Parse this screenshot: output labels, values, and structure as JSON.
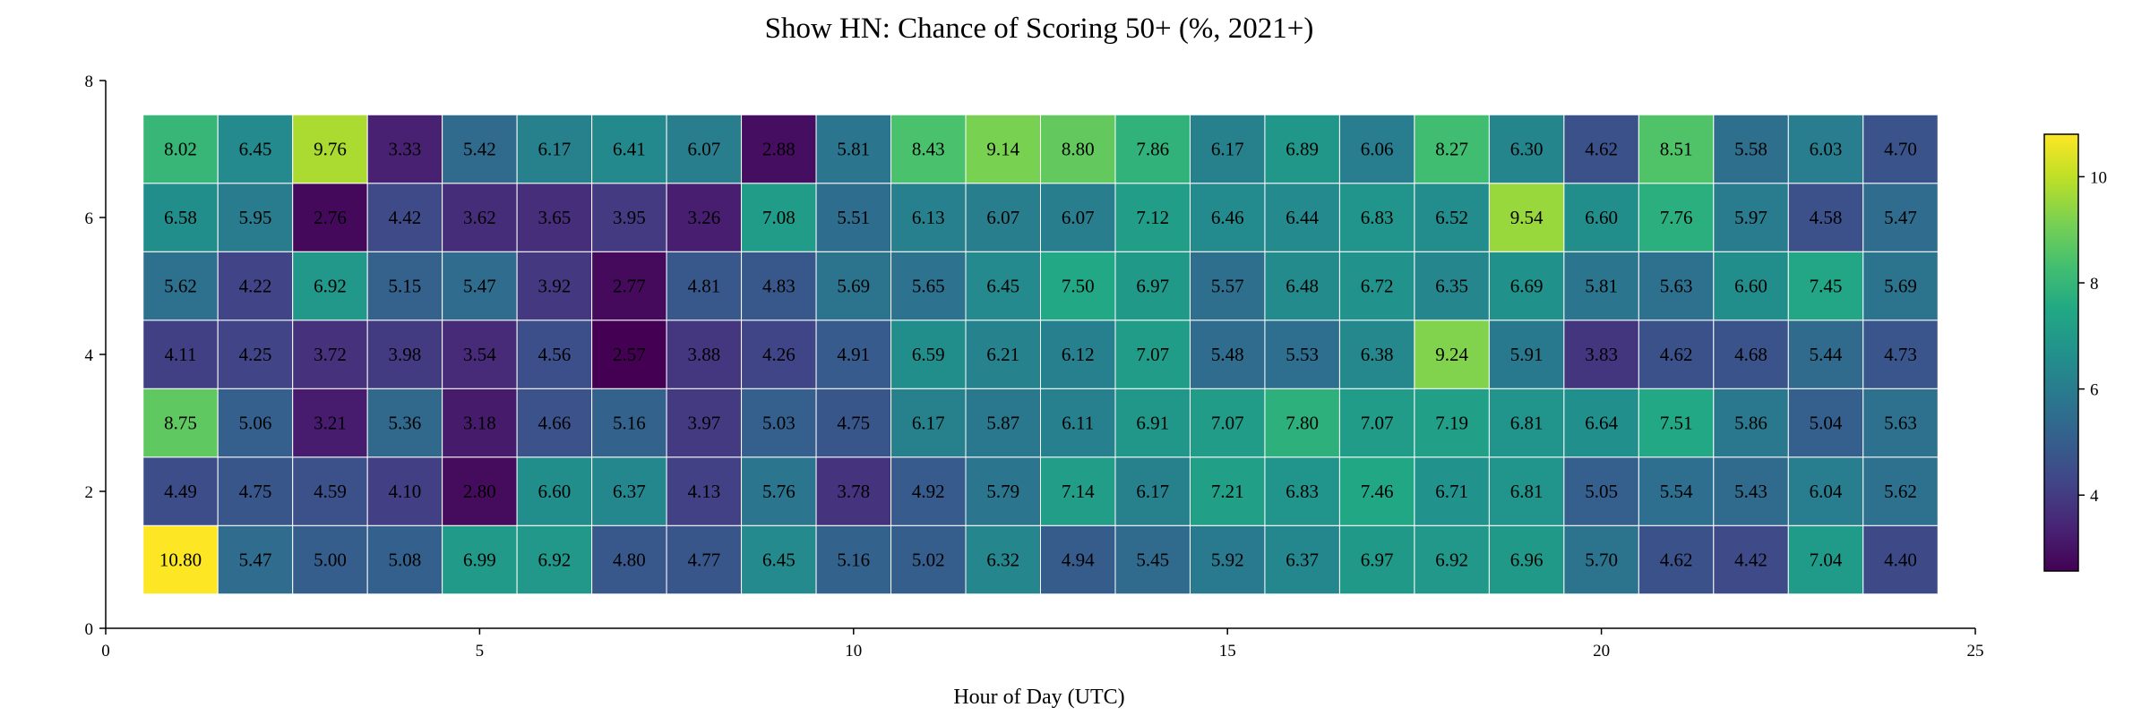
{
  "chart_data": {
    "type": "heatmap",
    "title": "Show HN: Chance of Scoring 50+ (%, 2021+)",
    "xlabel": "Hour of Day (UTC)",
    "ylabel": "",
    "xlim": [
      0,
      25
    ],
    "ylim": [
      0,
      8
    ],
    "x_ticks": [
      0,
      5,
      10,
      15,
      20,
      25
    ],
    "y_ticks": [
      0,
      2,
      4,
      6,
      8
    ],
    "colorbar": {
      "colormap": "viridis",
      "min": 2.57,
      "max": 10.8,
      "ticks": [
        4,
        6,
        8,
        10
      ]
    },
    "x": [
      1,
      2,
      3,
      4,
      5,
      6,
      7,
      8,
      9,
      10,
      11,
      12,
      13,
      14,
      15,
      16,
      17,
      18,
      19,
      20,
      21,
      22,
      23,
      24
    ],
    "y": [
      1,
      2,
      3,
      4,
      5,
      6,
      7
    ],
    "values": [
      [
        10.8,
        5.47,
        5.0,
        5.08,
        6.99,
        6.92,
        4.8,
        4.77,
        6.45,
        5.16,
        5.02,
        6.32,
        4.94,
        5.45,
        5.92,
        6.37,
        6.97,
        6.92,
        6.96,
        5.7,
        4.62,
        4.42,
        7.04,
        4.4
      ],
      [
        4.49,
        4.75,
        4.59,
        4.1,
        2.8,
        6.6,
        6.37,
        4.13,
        5.76,
        3.78,
        4.92,
        5.79,
        7.14,
        6.17,
        7.21,
        6.83,
        7.46,
        6.71,
        6.81,
        5.05,
        5.54,
        5.43,
        6.04,
        5.62
      ],
      [
        8.75,
        5.06,
        3.21,
        5.36,
        3.18,
        4.66,
        5.16,
        3.97,
        5.03,
        4.75,
        6.17,
        5.87,
        6.11,
        6.91,
        7.07,
        7.8,
        7.07,
        7.19,
        6.81,
        6.64,
        7.51,
        5.86,
        5.04,
        5.63
      ],
      [
        4.11,
        4.25,
        3.72,
        3.98,
        3.54,
        4.56,
        2.57,
        3.88,
        4.26,
        4.91,
        6.59,
        6.21,
        6.12,
        7.07,
        5.48,
        5.53,
        6.38,
        9.24,
        5.91,
        3.83,
        4.62,
        4.68,
        5.44,
        4.73
      ],
      [
        5.62,
        4.22,
        6.92,
        5.15,
        5.47,
        3.92,
        2.77,
        4.81,
        4.83,
        5.69,
        5.65,
        6.45,
        7.5,
        6.97,
        5.57,
        6.48,
        6.72,
        6.35,
        6.69,
        5.81,
        5.63,
        6.6,
        7.45,
        5.69
      ],
      [
        6.58,
        5.95,
        2.76,
        4.42,
        3.62,
        3.65,
        3.95,
        3.26,
        7.08,
        5.51,
        6.13,
        6.07,
        6.07,
        7.12,
        6.46,
        6.44,
        6.83,
        6.52,
        9.54,
        6.6,
        7.76,
        5.97,
        4.58,
        5.47
      ],
      [
        8.02,
        6.45,
        9.76,
        3.33,
        5.42,
        6.17,
        6.41,
        6.07,
        2.88,
        5.81,
        8.43,
        9.14,
        8.8,
        7.86,
        6.17,
        6.89,
        6.06,
        8.27,
        6.3,
        4.62,
        8.51,
        5.58,
        6.03,
        4.7
      ]
    ]
  }
}
